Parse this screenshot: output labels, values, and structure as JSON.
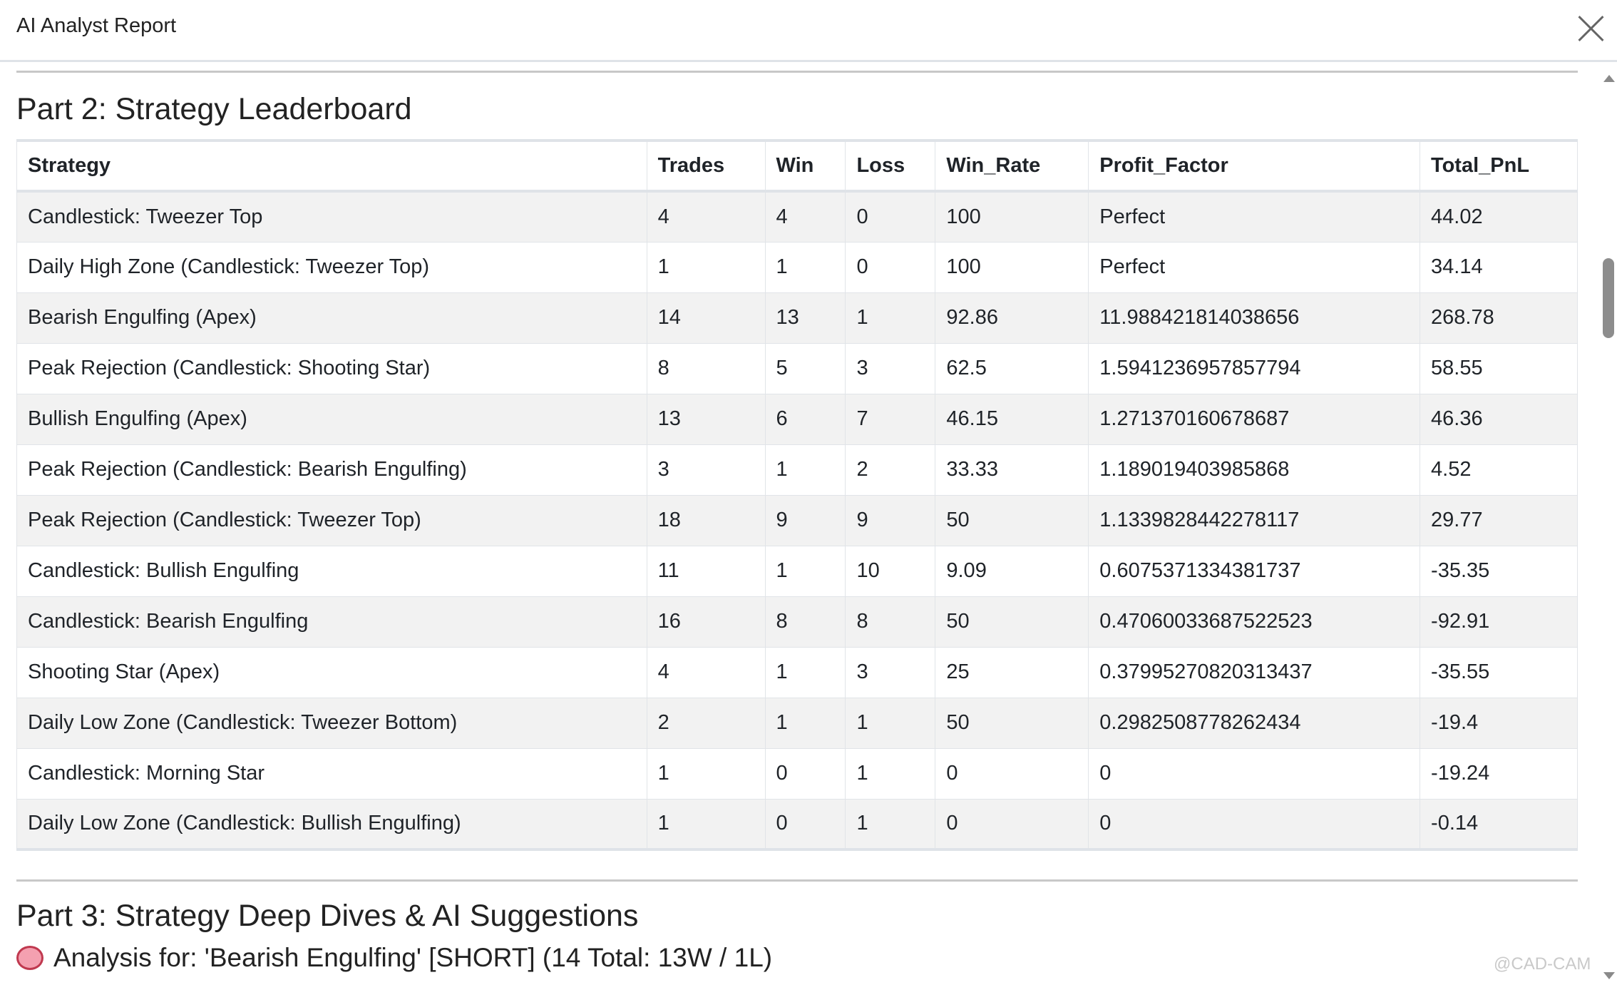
{
  "window": {
    "title": "AI Analyst Report",
    "close_icon": "close-icon"
  },
  "part2": {
    "heading": "Part 2: Strategy Leaderboard",
    "columns": [
      "Strategy",
      "Trades",
      "Win",
      "Loss",
      "Win_Rate",
      "Profit_Factor",
      "Total_PnL"
    ],
    "rows": [
      [
        "Candlestick: Tweezer Top",
        "4",
        "4",
        "0",
        "100",
        "Perfect",
        "44.02"
      ],
      [
        "Daily High Zone (Candlestick: Tweezer Top)",
        "1",
        "1",
        "0",
        "100",
        "Perfect",
        "34.14"
      ],
      [
        "Bearish Engulfing (Apex)",
        "14",
        "13",
        "1",
        "92.86",
        "11.988421814038656",
        "268.78"
      ],
      [
        "Peak Rejection (Candlestick: Shooting Star)",
        "8",
        "5",
        "3",
        "62.5",
        "1.5941236957857794",
        "58.55"
      ],
      [
        "Bullish Engulfing (Apex)",
        "13",
        "6",
        "7",
        "46.15",
        "1.271370160678687",
        "46.36"
      ],
      [
        "Peak Rejection (Candlestick: Bearish Engulfing)",
        "3",
        "1",
        "2",
        "33.33",
        "1.189019403985868",
        "4.52"
      ],
      [
        "Peak Rejection (Candlestick: Tweezer Top)",
        "18",
        "9",
        "9",
        "50",
        "1.1339828442278117",
        "29.77"
      ],
      [
        "Candlestick: Bullish Engulfing",
        "11",
        "1",
        "10",
        "9.09",
        "0.6075371334381737",
        "-35.35"
      ],
      [
        "Candlestick: Bearish Engulfing",
        "16",
        "8",
        "8",
        "50",
        "0.47060033687522523",
        "-92.91"
      ],
      [
        "Shooting Star (Apex)",
        "4",
        "1",
        "3",
        "25",
        "0.37995270820313437",
        "-35.55"
      ],
      [
        "Daily Low Zone (Candlestick: Tweezer Bottom)",
        "2",
        "1",
        "1",
        "50",
        "0.2982508778262434",
        "-19.4"
      ],
      [
        "Candlestick: Morning Star",
        "1",
        "0",
        "1",
        "0",
        "0",
        "-19.24"
      ],
      [
        "Daily Low Zone (Candlestick: Bullish Engulfing)",
        "1",
        "0",
        "1",
        "0",
        "0",
        "-0.14"
      ]
    ]
  },
  "part3": {
    "heading": "Part 3: Strategy Deep Dives & AI Suggestions",
    "analysis_icon": "brain-icon",
    "analysis_title": "Analysis for: 'Bearish Engulfing' [SHORT] (14 Total: 13W / 1L)"
  },
  "watermark": "@CAD-CAM"
}
